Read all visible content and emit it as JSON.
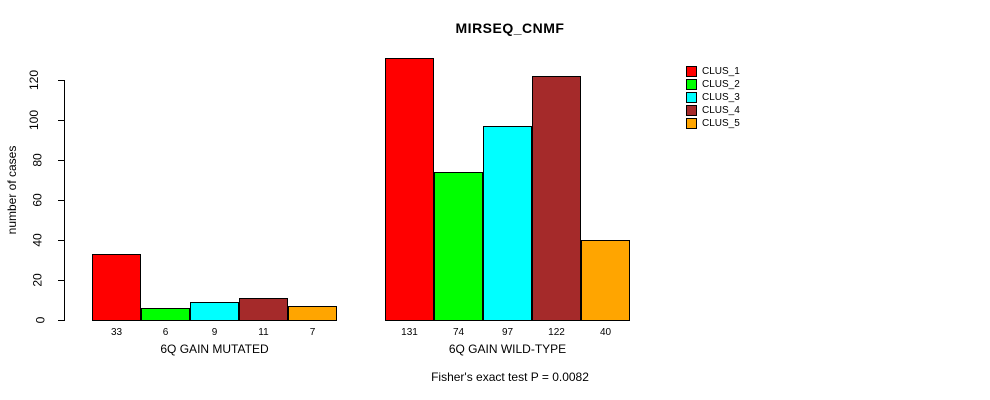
{
  "chart_data": {
    "type": "bar",
    "title": "MIRSEQ_CNMF",
    "ylabel": "number of cases",
    "xlabel": "",
    "ylim": [
      0,
      120
    ],
    "yticks": [
      0,
      20,
      40,
      60,
      80,
      100,
      120
    ],
    "grid": false,
    "legend_position": "top-right",
    "categories": [
      "6Q GAIN MUTATED",
      "6Q GAIN WILD-TYPE"
    ],
    "series": [
      {
        "name": "CLUS_1",
        "color": "#FF0000",
        "values": [
          33,
          131
        ]
      },
      {
        "name": "CLUS_2",
        "color": "#00FF00",
        "values": [
          6,
          74
        ]
      },
      {
        "name": "CLUS_3",
        "color": "#00FFFF",
        "values": [
          9,
          97
        ]
      },
      {
        "name": "CLUS_4",
        "color": "#A52A2A",
        "values": [
          11,
          122
        ]
      },
      {
        "name": "CLUS_5",
        "color": "#FFA500",
        "values": [
          7,
          40
        ]
      }
    ],
    "value_labels_shown": true,
    "annotation": "Fisher's exact test P = 0.0082"
  }
}
